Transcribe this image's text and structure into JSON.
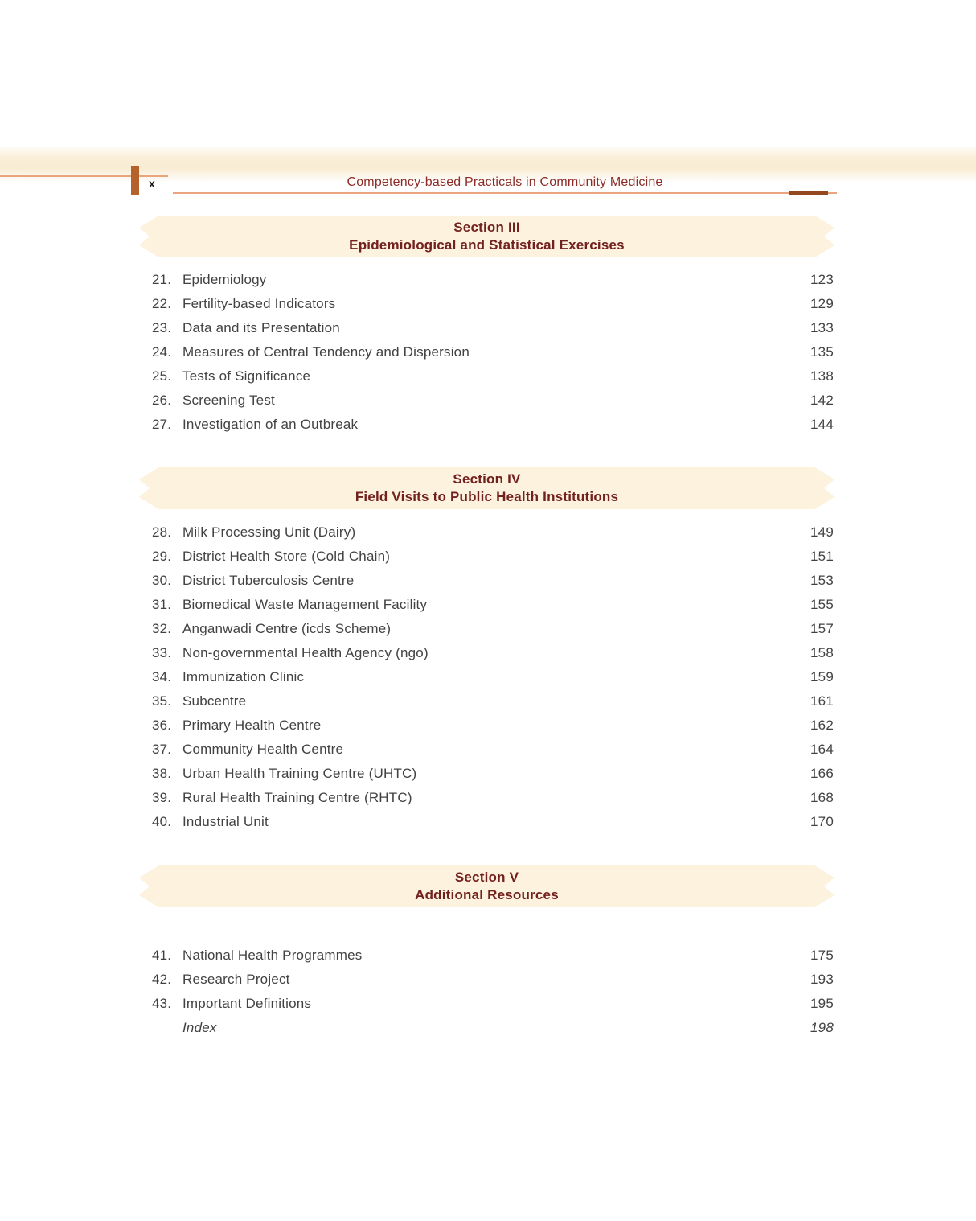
{
  "page": {
    "folio": "x",
    "running_head": "Competency-based Practicals in Community Medicine"
  },
  "colors": {
    "banner_background": "#fcf2de",
    "section_heading": "#73211e",
    "running_head_text": "#8d2c26",
    "rule_salmon": "#e9a57e",
    "dash_brown": "#94481d",
    "spine_bar_orange": "#b4612b",
    "body_text": "#424242"
  },
  "sections": [
    {
      "title": "Section III",
      "subtitle": "Epidemiological and Statistical Exercises",
      "items": [
        {
          "num": "21.",
          "title": "Epidemiology",
          "page": "123"
        },
        {
          "num": "22.",
          "title": "Fertility-based Indicators",
          "page": "129"
        },
        {
          "num": "23.",
          "title": "Data and its Presentation",
          "page": "133"
        },
        {
          "num": "24.",
          "title": "Measures of Central Tendency and Dispersion",
          "page": "135"
        },
        {
          "num": "25.",
          "title": "Tests of Significance",
          "page": "138"
        },
        {
          "num": "26.",
          "title": "Screening Test",
          "page": "142"
        },
        {
          "num": "27.",
          "title": "Investigation of an Outbreak",
          "page": "144"
        }
      ]
    },
    {
      "title": "Section IV",
      "subtitle": "Field Visits to Public Health Institutions",
      "items": [
        {
          "num": "28.",
          "title": "Milk Processing Unit (Dairy)",
          "page": "149"
        },
        {
          "num": "29.",
          "title": "District Health Store (Cold Chain)",
          "page": "151"
        },
        {
          "num": "30.",
          "title": "District Tuberculosis Centre",
          "page": "153"
        },
        {
          "num": "31.",
          "title": "Biomedical Waste Management Facility",
          "page": "155"
        },
        {
          "num": "32.",
          "title": "Anganwadi Centre (icds Scheme)",
          "page": "157"
        },
        {
          "num": "33.",
          "title": "Non-governmental Health Agency (ngo)",
          "page": "158"
        },
        {
          "num": "34.",
          "title": "Immunization Clinic",
          "page": "159"
        },
        {
          "num": "35.",
          "title": "Subcentre",
          "page": "161"
        },
        {
          "num": "36.",
          "title": "Primary Health Centre",
          "page": "162"
        },
        {
          "num": "37.",
          "title": "Community Health Centre",
          "page": "164"
        },
        {
          "num": "38.",
          "title": "Urban Health Training Centre (UHTC)",
          "page": "166"
        },
        {
          "num": "39.",
          "title": "Rural Health Training Centre (RHTC)",
          "page": "168"
        },
        {
          "num": "40.",
          "title": "Industrial Unit",
          "page": "170"
        }
      ]
    },
    {
      "title": "Section V",
      "subtitle": "Additional Resources",
      "items": [
        {
          "num": "41.",
          "title": "National Health Programmes",
          "page": "175"
        },
        {
          "num": "42.",
          "title": "Research Project",
          "page": "193"
        },
        {
          "num": "43.",
          "title": "Important Definitions",
          "page": "195"
        },
        {
          "num": "",
          "title": "Index",
          "page": "198",
          "italic": true
        }
      ]
    }
  ]
}
